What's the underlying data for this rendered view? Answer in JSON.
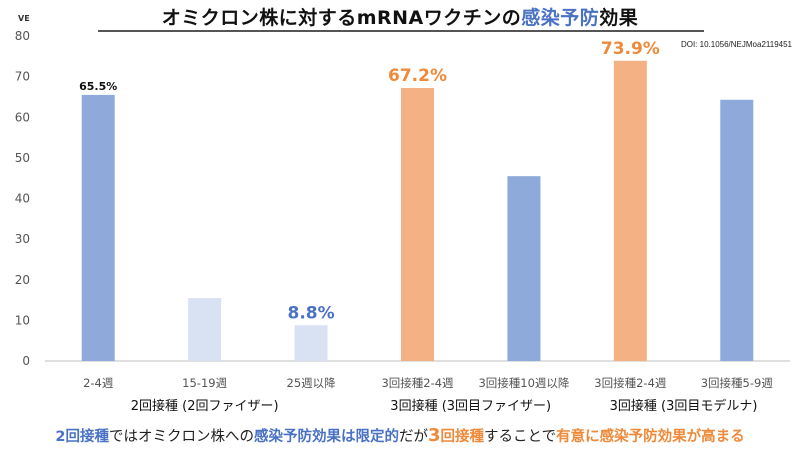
{
  "title": {
    "prefix": "オミクロン株に対するmRNAワクチンの",
    "highlight": "感染予防",
    "suffix": "効果"
  },
  "doi": "DOI: 10.1056/NEJMoa2119451",
  "chart_data": {
    "type": "bar",
    "ylabel": "VE",
    "ylim": [
      0,
      80
    ],
    "yticks": [
      0,
      10,
      20,
      30,
      40,
      50,
      60,
      70,
      80
    ],
    "grid": false,
    "categories": [
      "2-4週",
      "15-19週",
      "25週以降",
      "3回接種2-4週",
      "3回接種10週以降",
      "3回接種2-4週",
      "3回接種5-9週"
    ],
    "values": [
      65.5,
      15.5,
      8.8,
      67.2,
      45.5,
      73.9,
      64.3
    ],
    "colors": [
      "#8eaadb",
      "#d9e2f3",
      "#d9e2f3",
      "#f4b183",
      "#8eaadb",
      "#f4b183",
      "#8eaadb"
    ],
    "data_labels": [
      {
        "index": 0,
        "text": "65.5%",
        "color": "#111111",
        "size": "small"
      },
      {
        "index": 2,
        "text": "8.8%",
        "color": "#4a72c4",
        "size": "large"
      },
      {
        "index": 3,
        "text": "67.2%",
        "color": "#ee8a3a",
        "size": "large"
      },
      {
        "index": 5,
        "text": "73.9%",
        "color": "#ee8a3a",
        "size": "large"
      }
    ],
    "groups": [
      {
        "label": "2回接種 (2回ファイザー)",
        "start": 0,
        "end": 2
      },
      {
        "label": "3回接種 (3回目ファイザー)",
        "start": 3,
        "end": 4
      },
      {
        "label": "3回接種 (3回目モデルナ)",
        "start": 5,
        "end": 6
      }
    ]
  },
  "bottom_message": {
    "part1": "2回接種",
    "part2": "ではオミクロン株への",
    "part3": "感染予防効果は限定的",
    "part4": "だが",
    "part5": "3",
    "part6": "回接種",
    "part7": "することで",
    "part8": "有意に感染予防効果が高まる"
  },
  "colors": {
    "blue_accent": "#4a72c4",
    "orange_accent": "#ee8a3a"
  }
}
